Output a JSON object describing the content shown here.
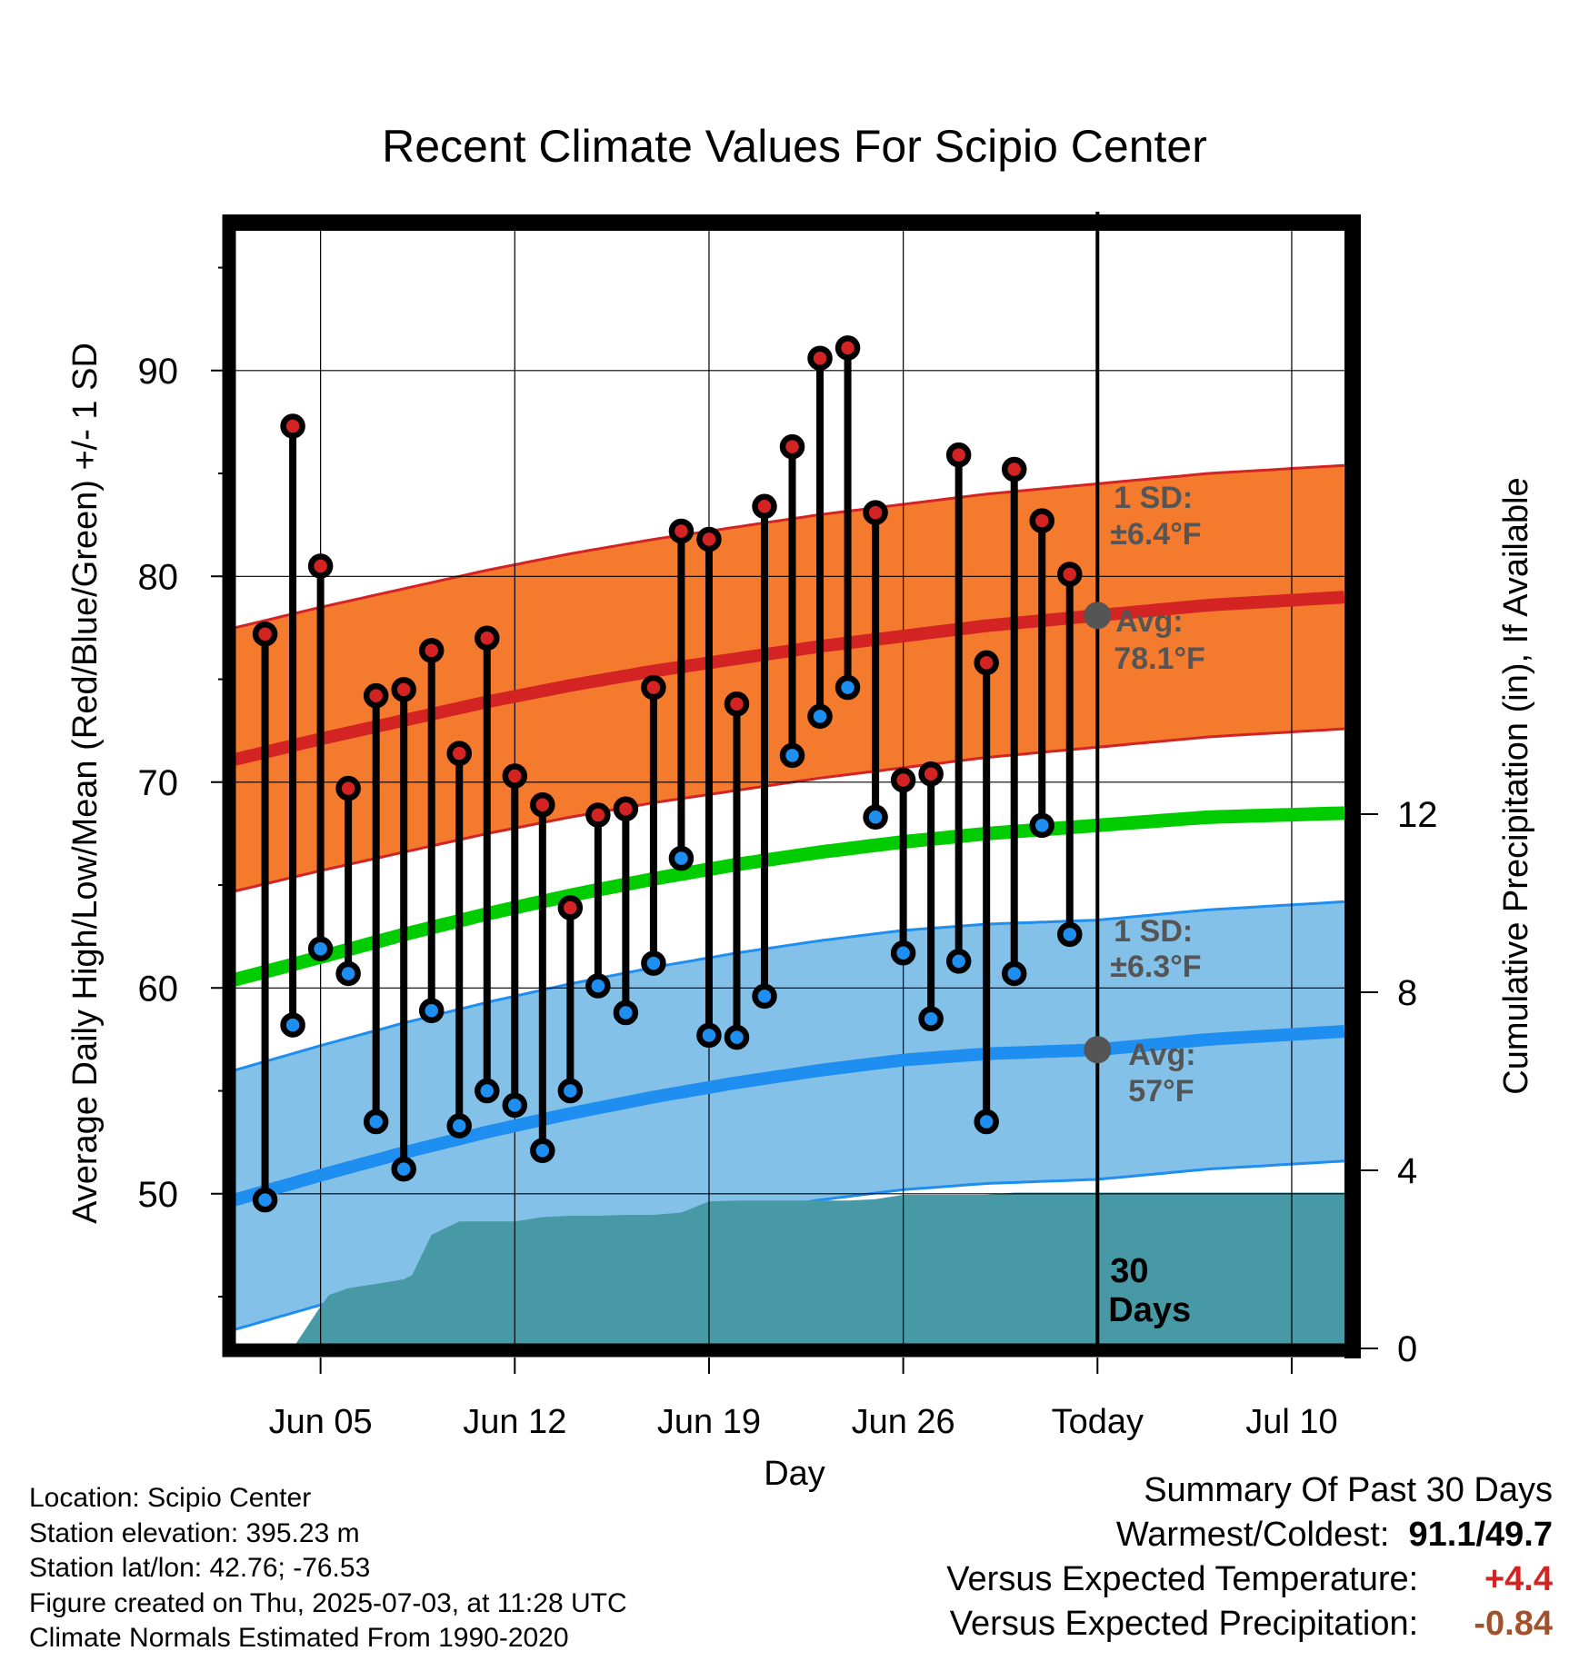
{
  "chart_data": {
    "type": "line",
    "title": "Recent Climate Values For Scipio Center",
    "xlabel": "Day",
    "ylabel": "Average Daily High/Low/Mean (Red/Blue/Green) +/- 1 SD",
    "y2label": "Cumulative Precipitation (in), If Available",
    "x_ticks": [
      {
        "day": 5,
        "label": "Jun 05"
      },
      {
        "day": 12,
        "label": "Jun 12"
      },
      {
        "day": 19,
        "label": "Jun 19"
      },
      {
        "day": 26,
        "label": "Jun 26"
      },
      {
        "day": 33,
        "label": "Today"
      },
      {
        "day": 40,
        "label": "Jul 10"
      }
    ],
    "x_range": [
      1.9,
      42.0
    ],
    "today_day": 33,
    "ylim": [
      42,
      96
    ],
    "y_ticks": [
      50,
      60,
      70,
      80,
      90
    ],
    "y2lim": [
      0,
      20.93
    ],
    "y2_ticks": [
      0,
      4,
      8,
      12
    ],
    "observed": {
      "days": [
        3,
        4,
        5,
        6,
        7,
        8,
        9,
        10,
        11,
        12,
        13,
        14,
        15,
        16,
        17,
        18,
        19,
        20,
        21,
        22,
        23,
        24,
        25,
        26,
        27,
        28,
        29,
        30,
        31,
        32
      ],
      "high": [
        77.2,
        87.3,
        80.5,
        69.7,
        74.2,
        74.5,
        76.4,
        71.4,
        77.0,
        70.3,
        68.9,
        63.9,
        68.4,
        68.7,
        74.6,
        82.2,
        81.8,
        73.8,
        83.4,
        86.3,
        90.6,
        91.1,
        83.1,
        70.1,
        70.4,
        85.9,
        75.8,
        85.2,
        82.7,
        80.1
      ],
      "low": [
        49.7,
        58.2,
        61.9,
        60.7,
        53.5,
        51.2,
        58.9,
        53.3,
        55.0,
        54.3,
        52.1,
        55.0,
        60.1,
        58.8,
        61.2,
        66.3,
        57.7,
        57.6,
        59.6,
        71.3,
        73.2,
        74.6,
        68.3,
        61.7,
        58.5,
        61.3,
        53.5,
        60.7,
        67.9,
        62.6
      ]
    },
    "normals": {
      "days": [
        1.9,
        5,
        8,
        11,
        14,
        17,
        20,
        23,
        26,
        29,
        33,
        37,
        42
      ],
      "high_avg": [
        71.1,
        72.1,
        73.0,
        73.9,
        74.7,
        75.4,
        76.0,
        76.6,
        77.1,
        77.6,
        78.1,
        78.6,
        79.0
      ],
      "low_avg": [
        49.7,
        50.9,
        52.0,
        53.0,
        53.9,
        54.7,
        55.4,
        56.0,
        56.5,
        56.8,
        57.0,
        57.5,
        57.9
      ],
      "mean_avg": [
        60.4,
        61.5,
        62.6,
        63.6,
        64.5,
        65.3,
        66.0,
        66.6,
        67.1,
        67.5,
        67.9,
        68.3,
        68.5
      ],
      "high_sd": 6.4,
      "low_sd": 6.3
    },
    "precip_cumulative": {
      "days": [
        4.0,
        4.9,
        5.3,
        6.0,
        7.0,
        8.0,
        8.3,
        9.0,
        10.0,
        11.0,
        12.0,
        13.0,
        14.0,
        15.0,
        16.0,
        17.0,
        18.0,
        19.0,
        20.0,
        21.0,
        22.0,
        23.0,
        24.0,
        25.0,
        26.0,
        27.0,
        28.0,
        29.0,
        30.0,
        33.0,
        42.0
      ],
      "values": [
        0.0,
        0.85,
        1.2,
        1.35,
        1.45,
        1.55,
        1.65,
        2.55,
        2.85,
        2.85,
        2.85,
        2.95,
        2.98,
        2.98,
        3.0,
        3.0,
        3.05,
        3.3,
        3.32,
        3.32,
        3.32,
        3.32,
        3.32,
        3.35,
        3.45,
        3.45,
        3.45,
        3.45,
        3.5,
        3.5,
        3.5
      ]
    },
    "annotations": {
      "high_sd": {
        "line1": "1 SD:",
        "line2": "±6.4°F"
      },
      "high_avg": {
        "line1": "Avg:",
        "line2": "78.1°F"
      },
      "low_sd": {
        "line1": "1 SD:",
        "line2": "±6.3°F"
      },
      "low_avg": {
        "line1": "Avg:",
        "line2": "57°F"
      },
      "window_line1": "30",
      "window_line2": "Days"
    },
    "colors": {
      "high_band": "#f47a2e",
      "high_line": "#d42323",
      "low_band": "#84c1e8",
      "low_line": "#1e8ef0",
      "mean_line": "#00cc00",
      "precip": "#4699a5",
      "high_dot": "#d42323",
      "low_dot": "#1e8ef0",
      "annotation": "#555555"
    }
  },
  "info": {
    "location": "Location: Scipio Center",
    "elevation": "Station elevation: 395.23 m",
    "latlon": "Station lat/lon: 42.76; -76.53",
    "created": "Figure created on Thu, 2025-07-03, at 11:28 UTC",
    "normals": "Climate Normals Estimated From 1990-2020"
  },
  "summary": {
    "heading": "Summary Of Past 30 Days",
    "warm_cold_label": "Warmest/Coldest:",
    "warm_cold_value": "91.1/49.7",
    "temp_label": "Versus Expected Temperature:",
    "temp_value": "+4.4",
    "temp_color": "#d42323",
    "precip_label": "Versus Expected Precipitation:",
    "precip_value": "-0.84",
    "precip_color": "#a0522d"
  }
}
